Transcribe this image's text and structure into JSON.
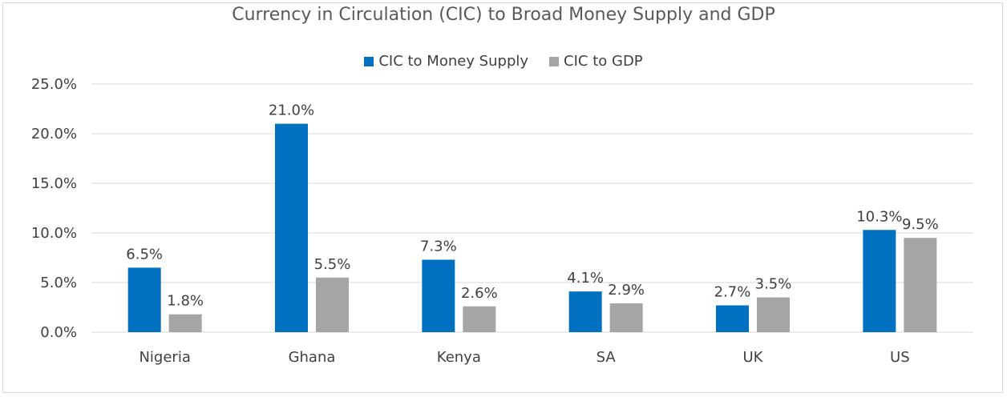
{
  "chart_data": {
    "type": "bar",
    "title": "Currency in Circulation (CIC) to Broad Money Supply and GDP",
    "categories": [
      "Nigeria",
      "Ghana",
      "Kenya",
      "SA",
      "UK",
      "US"
    ],
    "series": [
      {
        "name": "CIC to Money Supply",
        "color": "#0070c0",
        "values": [
          6.5,
          21.0,
          7.3,
          4.1,
          2.7,
          10.3
        ],
        "labels": [
          "6.5%",
          "21.0%",
          "7.3%",
          "4.1%",
          "2.7%",
          "10.3%"
        ]
      },
      {
        "name": "CIC to GDP",
        "color": "#a5a5a5",
        "values": [
          1.8,
          5.5,
          2.6,
          2.9,
          3.5,
          9.5
        ],
        "labels": [
          "1.8%",
          "5.5%",
          "2.6%",
          "2.9%",
          "3.5%",
          "9.5%"
        ]
      }
    ],
    "ylim": [
      0,
      25
    ],
    "yticks": [
      0,
      5,
      10,
      15,
      20,
      25
    ],
    "ytick_labels": [
      "0.0%",
      "5.0%",
      "10.0%",
      "15.0%",
      "20.0%",
      "25.0%"
    ],
    "grid": true,
    "legend_position": "top"
  }
}
